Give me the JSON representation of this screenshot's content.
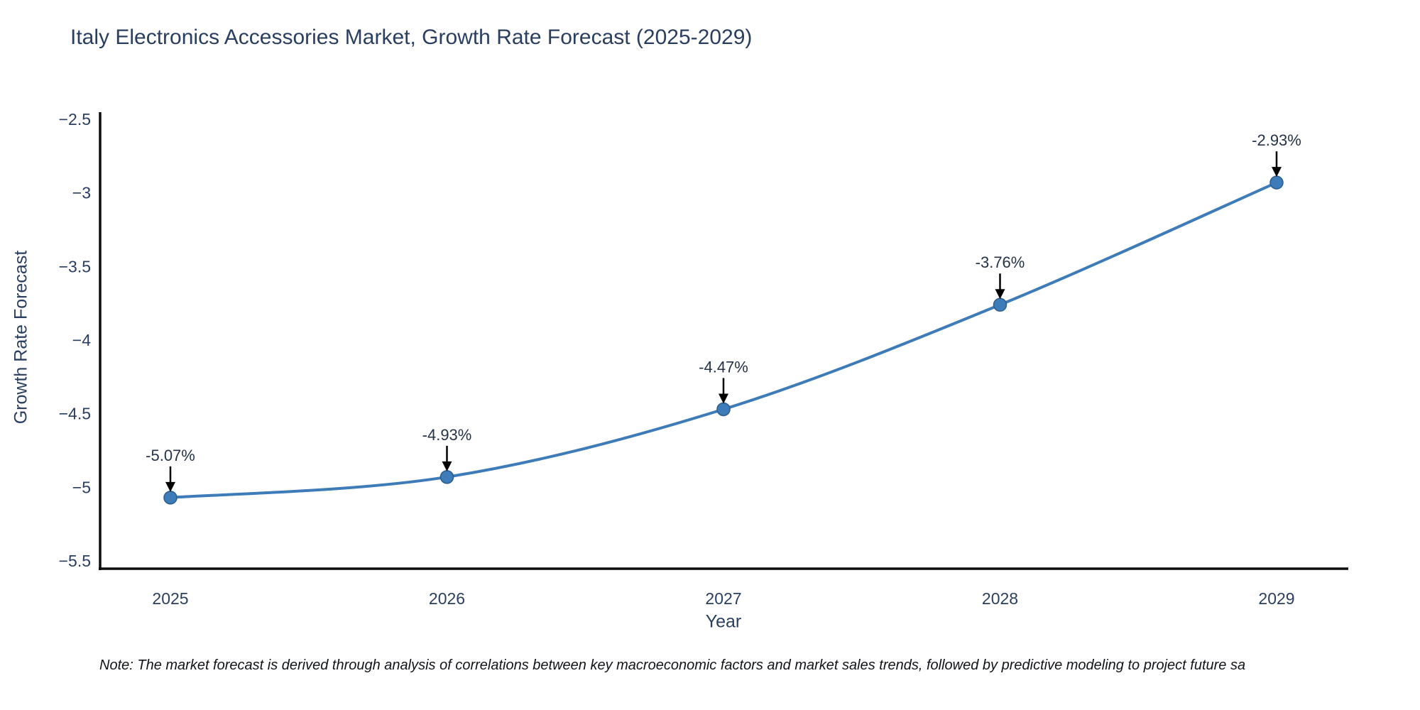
{
  "chart": {
    "title": "Italy Electronics Accessories Market, Growth Rate Forecast (2025-2029)",
    "note": "Note: The market forecast is derived through analysis of correlations between key macroeconomic factors and market sales trends, followed by predictive modeling to project future sa"
  },
  "chart_data": {
    "type": "line",
    "title": "Italy Electronics Accessories Market, Growth Rate Forecast (2025-2029)",
    "x": [
      "2025",
      "2026",
      "2027",
      "2028",
      "2029"
    ],
    "values": [
      -5.07,
      -4.93,
      -4.47,
      -3.76,
      -2.93
    ],
    "point_labels": [
      "-5.07%",
      "-4.93%",
      "-4.47%",
      "-3.76%",
      "-2.93%"
    ],
    "xlabel": "Year",
    "ylabel": "Growth Rate Forecast",
    "ylim": [
      -5.5,
      -2.5
    ],
    "yticks": [
      -2.5,
      -3,
      -3.5,
      -4,
      -4.5,
      -5,
      -5.5
    ],
    "ytick_labels": [
      "−2.5",
      "−3",
      "−3.5",
      "−4",
      "−4.5",
      "−5",
      "−5.5"
    ],
    "grid": false,
    "legend": "none",
    "line_shape": "spline",
    "line_color": "#3d7cb8",
    "marker_color": "#3d7cb8",
    "marker_edge_color": "#2b5d8f",
    "arrow_color": "#000000",
    "axis_color": "#0d0d0d",
    "text_color": "#2a3f5f",
    "annotation_color": "#253347"
  }
}
